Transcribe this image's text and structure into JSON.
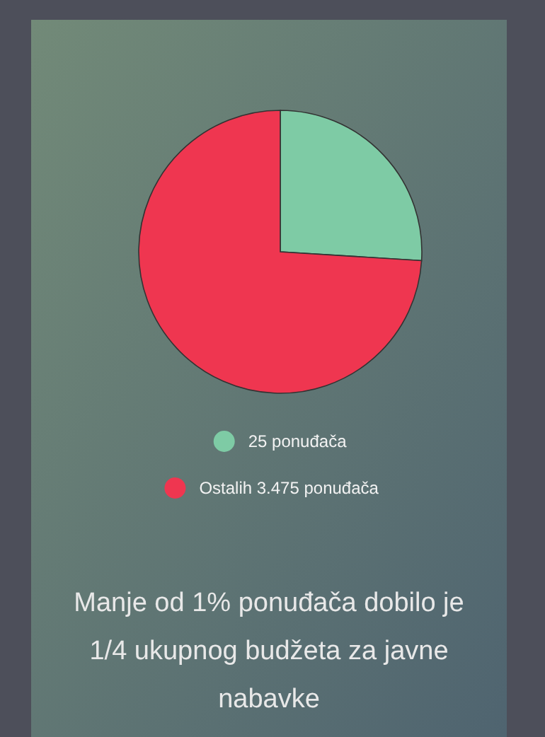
{
  "chart_data": {
    "type": "pie",
    "title": "Manje od 1% ponuđača dobilo je 1/4 ukupnog budžeta za javne nabavke",
    "categories": [
      "25 ponuđača",
      "Ostalih 3.475 ponuđača"
    ],
    "values": [
      26,
      74
    ],
    "colors": [
      "#7ecba5",
      "#ef3650"
    ],
    "legend": "bottom"
  }
}
